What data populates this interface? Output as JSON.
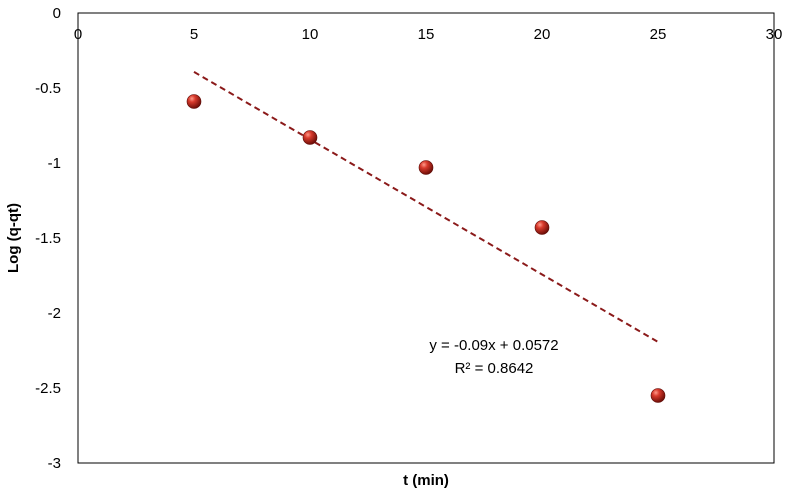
{
  "chart_data": {
    "type": "scatter",
    "title": "",
    "xlabel": "t (min)",
    "ylabel": "Log (q-qt)",
    "xlim": [
      0,
      30
    ],
    "ylim": [
      -3,
      0
    ],
    "xticks": [
      0,
      5,
      10,
      15,
      20,
      25,
      30
    ],
    "yticks": [
      0,
      -0.5,
      -1,
      -1.5,
      -2,
      -2.5,
      -3
    ],
    "x_axis_position": "top",
    "grid": false,
    "legend": "none",
    "series": [
      {
        "x": [
          5,
          10,
          15,
          20,
          25
        ],
        "y": [
          -0.59,
          -0.83,
          -1.03,
          -1.43,
          -2.55
        ],
        "marker_color": "#c0261e"
      }
    ],
    "trendline": {
      "type": "linear",
      "slope": -0.09,
      "intercept": 0.0572,
      "x_range": [
        5,
        25
      ],
      "style": "dashed",
      "color": "#8b1a1a"
    },
    "annotations": {
      "equation": "y = -0.09x + 0.0572",
      "r_squared": "R² = 0.8642"
    }
  }
}
